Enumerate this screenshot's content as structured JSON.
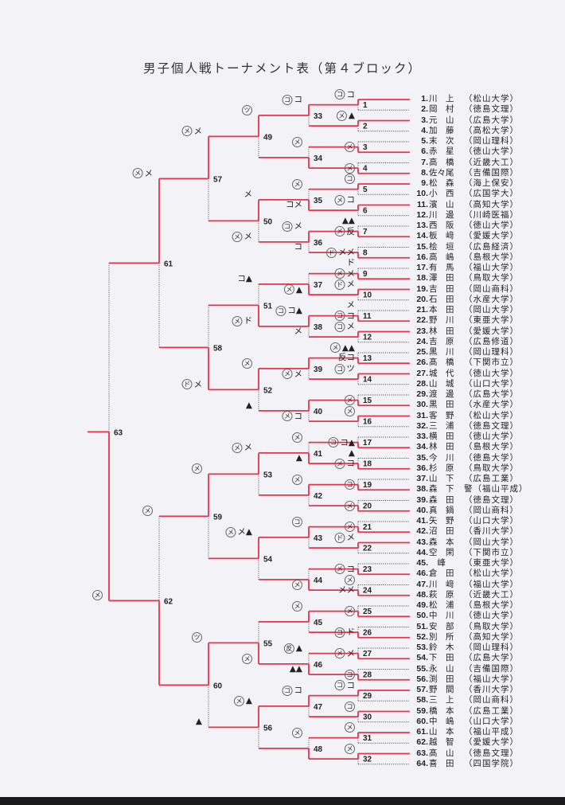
{
  "title": "男子個人戦トーナメント表（第４ブロック）",
  "colors": {
    "win": "#e8334a",
    "lose": "#555555",
    "background": "#f3f2f7"
  },
  "entries": [
    {
      "no": "1.",
      "name": "川　上",
      "school": "（松山大学）"
    },
    {
      "no": "2.",
      "name": "岡　村",
      "school": "（徳島文理）"
    },
    {
      "no": "3.",
      "name": "元　山",
      "school": "（広島大学）"
    },
    {
      "no": "4.",
      "name": "加　藤",
      "school": "（高松大学）"
    },
    {
      "no": "5.",
      "name": "末　次",
      "school": "（岡山理科）"
    },
    {
      "no": "6.",
      "name": "赤　星",
      "school": "（徳山大学）"
    },
    {
      "no": "7.",
      "name": "高　橋",
      "school": "（近畿大工）"
    },
    {
      "no": "8.",
      "name": "佐々尾",
      "school": "（吉備国際）"
    },
    {
      "no": "9.",
      "name": "松　森",
      "school": "（海上保安）"
    },
    {
      "no": "10.",
      "name": "小　西",
      "school": "（広国学大）"
    },
    {
      "no": "11.",
      "name": "濱　山",
      "school": "（高知大学）"
    },
    {
      "no": "12.",
      "name": "川　邊",
      "school": "（川崎医福）"
    },
    {
      "no": "13.",
      "name": "西　阪",
      "school": "（徳山大学）"
    },
    {
      "no": "14.",
      "name": "板　﨑",
      "school": "（愛媛大学）"
    },
    {
      "no": "15.",
      "name": "桧　垣",
      "school": "（広島経済）"
    },
    {
      "no": "16.",
      "name": "高　嶋",
      "school": "（島根大学）"
    },
    {
      "no": "17.",
      "name": "有　馬",
      "school": "（福山大学）"
    },
    {
      "no": "18.",
      "name": "澤　田",
      "school": "（鳥取大学）"
    },
    {
      "no": "19.",
      "name": "吉　田",
      "school": "（岡山商科）"
    },
    {
      "no": "20.",
      "name": "石　田",
      "school": "（水産大学）"
    },
    {
      "no": "21.",
      "name": "本　田",
      "school": "（岡山大学）"
    },
    {
      "no": "22.",
      "name": "野　川",
      "school": "（東亜大学）"
    },
    {
      "no": "23.",
      "name": "林　田",
      "school": "（愛媛大学）"
    },
    {
      "no": "24.",
      "name": "吉　原",
      "school": "（広島修道）"
    },
    {
      "no": "25.",
      "name": "黒　川",
      "school": "（岡山理科）"
    },
    {
      "no": "26.",
      "name": "髙　橋",
      "school": "（下関市立）"
    },
    {
      "no": "27.",
      "name": "城　代",
      "school": "（徳山大学）"
    },
    {
      "no": "28.",
      "name": "山　城",
      "school": "（山口大学）"
    },
    {
      "no": "29.",
      "name": "渡　邊",
      "school": "（広島大学）"
    },
    {
      "no": "30.",
      "name": "黒　田",
      "school": "（水産大学）"
    },
    {
      "no": "31.",
      "name": "客　野",
      "school": "（松山大学）"
    },
    {
      "no": "32.",
      "name": "三　浦",
      "school": "（徳島文理）"
    },
    {
      "no": "33.",
      "name": "横　田",
      "school": "（徳山大学）"
    },
    {
      "no": "34.",
      "name": "林　田",
      "school": "（島根大学）"
    },
    {
      "no": "35.",
      "name": "今　川",
      "school": "（徳島大学）"
    },
    {
      "no": "36.",
      "name": "杉　原",
      "school": "（鳥取大学）"
    },
    {
      "no": "37.",
      "name": "山　下",
      "school": "（広島工業）"
    },
    {
      "no": "38.",
      "name": "森　下",
      "school": "警（福山平成）"
    },
    {
      "no": "39.",
      "name": "森　田",
      "school": "（徳島文理）"
    },
    {
      "no": "40.",
      "name": "真　鍋",
      "school": "（岡山商科）"
    },
    {
      "no": "41.",
      "name": "矢　野",
      "school": "（山口大学）"
    },
    {
      "no": "42.",
      "name": "沼　田",
      "school": "（香川大学）"
    },
    {
      "no": "43.",
      "name": "森　本",
      "school": "（岡山大学）"
    },
    {
      "no": "44.",
      "name": "空　閑",
      "school": "（下関市立）"
    },
    {
      "no": "45.",
      "name": "　峰",
      "school": "（東亜大学）"
    },
    {
      "no": "46.",
      "name": "倉　田",
      "school": "（松山大学）"
    },
    {
      "no": "47.",
      "name": "川　﨑",
      "school": "（福山大学）"
    },
    {
      "no": "48.",
      "name": "萩　原",
      "school": "（近畿大工）"
    },
    {
      "no": "49.",
      "name": "松　浦",
      "school": "（島根大学）"
    },
    {
      "no": "50.",
      "name": "中　川",
      "school": "（徳山大学）"
    },
    {
      "no": "51.",
      "name": "安　部",
      "school": "（鳥取大学）"
    },
    {
      "no": "52.",
      "name": "別　所",
      "school": "（高知大学）"
    },
    {
      "no": "53.",
      "name": "鈴　木",
      "school": "（岡山理科）"
    },
    {
      "no": "54.",
      "name": "下　田",
      "school": "（広島大学）"
    },
    {
      "no": "55.",
      "name": "永　山",
      "school": "（吉備国際）"
    },
    {
      "no": "56.",
      "name": "渕　田",
      "school": "（福山大学）"
    },
    {
      "no": "57.",
      "name": "野　間",
      "school": "（香川大学）"
    },
    {
      "no": "58.",
      "name": "三　上",
      "school": "（岡山商科）"
    },
    {
      "no": "59.",
      "name": "橋　本",
      "school": "（広島工業）"
    },
    {
      "no": "60.",
      "name": "中　嶋",
      "school": "（山口大学）"
    },
    {
      "no": "61.",
      "name": "山　本",
      "school": "（福山平成）"
    },
    {
      "no": "62.",
      "name": "越　智",
      "school": "（愛媛大学）"
    },
    {
      "no": "63.",
      "name": "髙　山",
      "school": "（徳島文理）"
    },
    {
      "no": "64.",
      "name": "喜　田",
      "school": "（四国学院）"
    }
  ],
  "winners": [
    0,
    0,
    1,
    1,
    0,
    0,
    1,
    1,
    1,
    0,
    1,
    0,
    1,
    0,
    1,
    0,
    1,
    1,
    1,
    1,
    1,
    0,
    1,
    1,
    1,
    1,
    1,
    1,
    0,
    0,
    0,
    0,
    0,
    1,
    1,
    0,
    1,
    0,
    0,
    0,
    1,
    0,
    0,
    1,
    0,
    1,
    0,
    1,
    0,
    0,
    1,
    0,
    0,
    0,
    1,
    0,
    0,
    1,
    0,
    0,
    0,
    1,
    1
  ],
  "annotations": [
    {
      "m": 1,
      "s": 0,
      "c": "コ",
      "t": "コ"
    },
    {
      "m": 2,
      "s": 0,
      "c": "メ",
      "t": "▲"
    },
    {
      "m": 3,
      "s": 1,
      "c": "メ",
      "t": ""
    },
    {
      "m": 4,
      "s": 1,
      "c": "メ",
      "t": ""
    },
    {
      "m": 5,
      "s": 0,
      "c": "コ",
      "t": ""
    },
    {
      "m": 6,
      "s": 0,
      "c": "メ",
      "t": "コ"
    },
    {
      "m": 7,
      "s": 0,
      "c": "",
      "t": "▲▲"
    },
    {
      "m": 7,
      "s": 1,
      "c": "メ",
      "t": "反"
    },
    {
      "m": 8,
      "s": 1,
      "c": "ド",
      "t": "メメ"
    },
    {
      "m": 9,
      "s": 0,
      "c": "",
      "t": "ド"
    },
    {
      "m": 9,
      "s": 1,
      "c": "メ",
      "t": "メ"
    },
    {
      "m": 10,
      "s": 0,
      "c": "ド",
      "t": "メ"
    },
    {
      "m": 11,
      "s": 0,
      "c": "",
      "t": "メ"
    },
    {
      "m": 11,
      "s": 1,
      "c": "コ",
      "t": "コ"
    },
    {
      "m": 12,
      "s": 0,
      "c": "コ",
      "t": "メ"
    },
    {
      "m": 13,
      "s": 0,
      "c": "メ",
      "t": "▲▲"
    },
    {
      "m": 13,
      "s": 1,
      "c": "",
      "t": "反コ"
    },
    {
      "m": 14,
      "s": 0,
      "c": "コ",
      "t": "ツ"
    },
    {
      "m": 15,
      "s": 1,
      "c": "メ",
      "t": ""
    },
    {
      "m": 16,
      "s": 0,
      "c": "メ",
      "t": ""
    },
    {
      "m": 17,
      "s": 1,
      "c": "コ",
      "t": "コ▲"
    },
    {
      "m": 18,
      "s": 0,
      "c": "",
      "t": "▲"
    },
    {
      "m": 18,
      "s": 1,
      "c": "メ",
      "t": "コ"
    },
    {
      "m": 19,
      "s": 1,
      "c": "コ",
      "t": ""
    },
    {
      "m": 20,
      "s": 1,
      "c": "メ",
      "t": ""
    },
    {
      "m": 21,
      "s": 1,
      "c": "メ",
      "t": ""
    },
    {
      "m": 22,
      "s": 0,
      "c": "ド",
      "t": "メ"
    },
    {
      "m": 23,
      "s": 1,
      "c": "メ",
      "t": "コ"
    },
    {
      "m": 24,
      "s": 0,
      "c": "メ",
      "t": ""
    },
    {
      "m": 24,
      "s": 1,
      "c": "",
      "t": "メメ"
    },
    {
      "m": 25,
      "s": 1,
      "c": "メ",
      "t": ""
    },
    {
      "m": 26,
      "s": 1,
      "c": "コ",
      "t": "ド"
    },
    {
      "m": 27,
      "s": 1,
      "c": "メ",
      "t": "メ"
    },
    {
      "m": 28,
      "s": 1,
      "c": "コ",
      "t": ""
    },
    {
      "m": 29,
      "s": 0,
      "c": "コ",
      "t": "コ"
    },
    {
      "m": 30,
      "s": 0,
      "c": "コ",
      "t": ""
    },
    {
      "m": 31,
      "s": 0,
      "c": "メ",
      "t": ""
    },
    {
      "m": 32,
      "s": 0,
      "c": "メ",
      "t": ""
    },
    {
      "m": 33,
      "s": 0,
      "c": "コ",
      "t": "コ"
    },
    {
      "m": 34,
      "s": 0,
      "c": "メ",
      "t": ""
    },
    {
      "m": 35,
      "s": 0,
      "c": "メ",
      "t": ""
    },
    {
      "m": 35,
      "s": 1,
      "c": "",
      "t": "コメ"
    },
    {
      "m": 36,
      "s": 0,
      "c": "コ",
      "t": "メ"
    },
    {
      "m": 36,
      "s": 1,
      "c": "",
      "t": "コ"
    },
    {
      "m": 37,
      "s": 1,
      "c": "メ",
      "t": "▲"
    },
    {
      "m": 38,
      "s": 0,
      "c": "コ",
      "t": "コ▲"
    },
    {
      "m": 38,
      "s": 1,
      "c": "",
      "t": "メ"
    },
    {
      "m": 39,
      "s": 1,
      "c": "メ",
      "t": "メ"
    },
    {
      "m": 40,
      "s": 1,
      "c": "メ",
      "t": "コ"
    },
    {
      "m": 41,
      "s": 0,
      "c": "メ",
      "t": ""
    },
    {
      "m": 41,
      "s": 1,
      "c": "",
      "t": "▲"
    },
    {
      "m": 42,
      "s": 0,
      "c": "メ",
      "t": ""
    },
    {
      "m": 43,
      "s": 0,
      "c": "コ",
      "t": ""
    },
    {
      "m": 44,
      "s": 1,
      "c": "メ",
      "t": ""
    },
    {
      "m": 45,
      "s": 0,
      "c": "メ",
      "t": ""
    },
    {
      "m": 46,
      "s": 0,
      "c": "反",
      "t": "▲"
    },
    {
      "m": 46,
      "s": 1,
      "c": "",
      "t": "▲▲"
    },
    {
      "m": 47,
      "s": 0,
      "c": "コ",
      "t": "コ"
    },
    {
      "m": 48,
      "s": 0,
      "c": "メ",
      "t": ""
    },
    {
      "m": 49,
      "s": 0,
      "c": "ツ",
      "t": ""
    },
    {
      "m": 50,
      "s": 0,
      "c": "",
      "t": "メ"
    },
    {
      "m": 50,
      "s": 1,
      "c": "メ",
      "t": "メ"
    },
    {
      "m": 51,
      "s": 0,
      "c": "",
      "t": "コ▲"
    },
    {
      "m": 51,
      "s": 1,
      "c": "メ",
      "t": "ド"
    },
    {
      "m": 52,
      "s": 0,
      "c": "メ",
      "t": ""
    },
    {
      "m": 52,
      "s": 1,
      "c": "",
      "t": "▲"
    },
    {
      "m": 53,
      "s": 0,
      "c": "メ",
      "t": "メ"
    },
    {
      "m": 54,
      "s": 0,
      "c": "メ",
      "t": "メ▲"
    },
    {
      "m": 55,
      "s": 1,
      "c": "メ",
      "t": ""
    },
    {
      "m": 56,
      "s": 0,
      "c": "メ",
      "t": "▲"
    },
    {
      "m": 57,
      "s": 0,
      "c": "メ",
      "t": "メ"
    },
    {
      "m": 58,
      "s": 1,
      "c": "ド",
      "t": "メ"
    },
    {
      "m": 59,
      "s": 0,
      "c": "メ",
      "t": ""
    },
    {
      "m": 60,
      "s": 0,
      "c": "ツ",
      "t": ""
    },
    {
      "m": 60,
      "s": 1,
      "c": "",
      "t": "▲"
    },
    {
      "m": 61,
      "s": 0,
      "c": "メ",
      "t": "メ"
    },
    {
      "m": 62,
      "s": 0,
      "c": "メ",
      "t": ""
    },
    {
      "m": 63,
      "s": 1,
      "c": "メ",
      "t": ""
    }
  ]
}
